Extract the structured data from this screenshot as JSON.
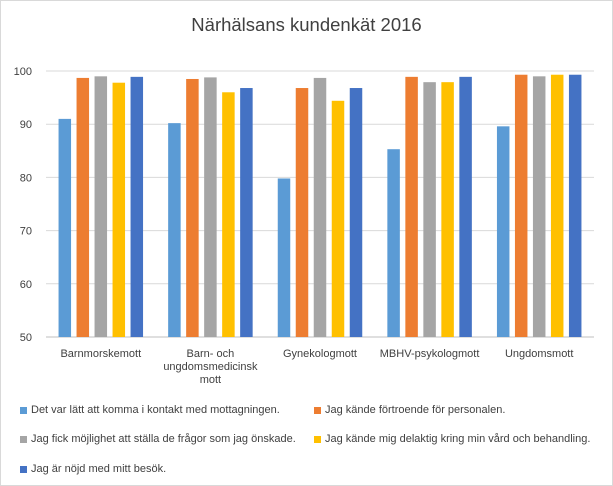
{
  "chart_data": {
    "type": "bar",
    "title": "Närhälsans kundenkät 2016",
    "xlabel": "",
    "ylabel": "",
    "ylim": [
      50,
      100
    ],
    "yticks": [
      50,
      60,
      70,
      80,
      90,
      100
    ],
    "grid": true,
    "legend_position": "bottom",
    "categories": [
      [
        "Barnmorskemott"
      ],
      [
        "Barn- och",
        "ungdomsmedicinsk",
        "mott"
      ],
      [
        "Gynekologmott"
      ],
      [
        "MBHV-psykologmott"
      ],
      [
        "Ungdomsmott"
      ]
    ],
    "series": [
      {
        "name": "Det var lätt att komma i kontakt med mottagningen.",
        "color": "#5b9bd5",
        "values": [
          91,
          90.2,
          79.8,
          85.3,
          89.6
        ]
      },
      {
        "name": "Jag kände förtroende för personalen.",
        "color": "#ed7d31",
        "values": [
          98.7,
          98.5,
          96.8,
          98.9,
          99.3
        ]
      },
      {
        "name": "Jag fick möjlighet att ställa de frågor som jag önskade.",
        "color": "#a5a5a5",
        "values": [
          99,
          98.8,
          98.7,
          97.9,
          99
        ]
      },
      {
        "name": "Jag kände mig delaktig kring min vård och behandling.",
        "color": "#ffc000",
        "values": [
          97.8,
          96,
          94.4,
          97.9,
          99.3
        ]
      },
      {
        "name": "Jag är nöjd med mitt besök.",
        "color": "#4472c4",
        "values": [
          98.9,
          96.8,
          96.8,
          98.9,
          99.3
        ]
      }
    ]
  }
}
